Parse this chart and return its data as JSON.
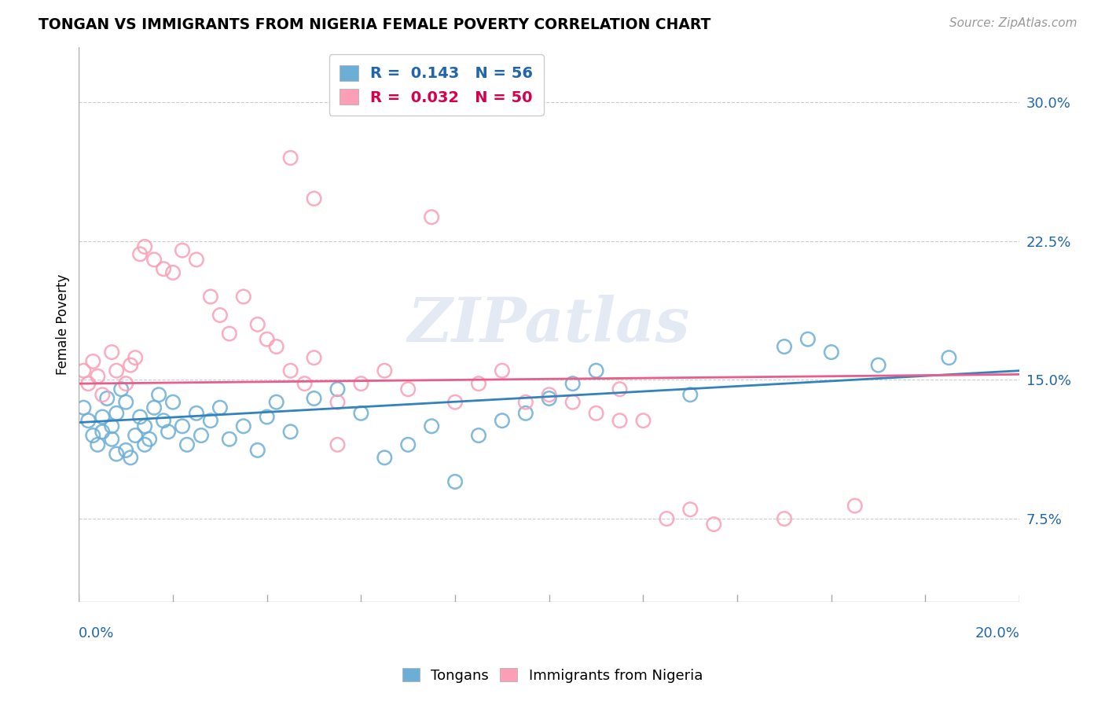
{
  "title": "TONGAN VS IMMIGRANTS FROM NIGERIA FEMALE POVERTY CORRELATION CHART",
  "source": "Source: ZipAtlas.com",
  "ylabel": "Female Poverty",
  "yticks": [
    "7.5%",
    "15.0%",
    "22.5%",
    "30.0%"
  ],
  "ytick_vals": [
    0.075,
    0.15,
    0.225,
    0.3
  ],
  "xlim": [
    0.0,
    0.2
  ],
  "ylim": [
    0.03,
    0.33
  ],
  "color_blue": "#6baed6",
  "color_pink": "#fa9fb5",
  "color_blue_line": "#3182bd",
  "color_pink_line": "#e85d8a",
  "color_text_blue": "#2166ac",
  "color_text_pink": "#d6004d",
  "tongans_x": [
    0.001,
    0.002,
    0.003,
    0.004,
    0.005,
    0.005,
    0.006,
    0.007,
    0.007,
    0.008,
    0.008,
    0.009,
    0.01,
    0.01,
    0.011,
    0.012,
    0.013,
    0.014,
    0.014,
    0.015,
    0.016,
    0.017,
    0.018,
    0.019,
    0.02,
    0.022,
    0.023,
    0.025,
    0.026,
    0.028,
    0.03,
    0.032,
    0.035,
    0.038,
    0.04,
    0.042,
    0.045,
    0.05,
    0.055,
    0.06,
    0.065,
    0.07,
    0.075,
    0.08,
    0.085,
    0.09,
    0.095,
    0.1,
    0.105,
    0.11,
    0.13,
    0.15,
    0.155,
    0.16,
    0.17,
    0.185
  ],
  "tongans_y": [
    0.135,
    0.128,
    0.12,
    0.115,
    0.13,
    0.122,
    0.14,
    0.118,
    0.125,
    0.132,
    0.11,
    0.145,
    0.138,
    0.112,
    0.108,
    0.12,
    0.13,
    0.115,
    0.125,
    0.118,
    0.135,
    0.142,
    0.128,
    0.122,
    0.138,
    0.125,
    0.115,
    0.132,
    0.12,
    0.128,
    0.135,
    0.118,
    0.125,
    0.112,
    0.13,
    0.138,
    0.122,
    0.14,
    0.145,
    0.132,
    0.108,
    0.115,
    0.125,
    0.095,
    0.12,
    0.128,
    0.132,
    0.14,
    0.148,
    0.155,
    0.142,
    0.168,
    0.172,
    0.165,
    0.158,
    0.162
  ],
  "nigeria_x": [
    0.001,
    0.002,
    0.003,
    0.004,
    0.005,
    0.007,
    0.008,
    0.01,
    0.011,
    0.012,
    0.013,
    0.014,
    0.016,
    0.018,
    0.02,
    0.022,
    0.025,
    0.028,
    0.03,
    0.032,
    0.035,
    0.038,
    0.04,
    0.042,
    0.045,
    0.048,
    0.05,
    0.055,
    0.06,
    0.065,
    0.07,
    0.075,
    0.08,
    0.085,
    0.09,
    0.095,
    0.1,
    0.105,
    0.11,
    0.115,
    0.045,
    0.05,
    0.055,
    0.115,
    0.12,
    0.125,
    0.13,
    0.135,
    0.15,
    0.165
  ],
  "nigeria_y": [
    0.155,
    0.148,
    0.16,
    0.152,
    0.142,
    0.165,
    0.155,
    0.148,
    0.158,
    0.162,
    0.218,
    0.222,
    0.215,
    0.21,
    0.208,
    0.22,
    0.215,
    0.195,
    0.185,
    0.175,
    0.195,
    0.18,
    0.172,
    0.168,
    0.155,
    0.148,
    0.162,
    0.138,
    0.148,
    0.155,
    0.145,
    0.238,
    0.138,
    0.148,
    0.155,
    0.138,
    0.142,
    0.138,
    0.132,
    0.128,
    0.27,
    0.248,
    0.115,
    0.145,
    0.128,
    0.075,
    0.08,
    0.072,
    0.075,
    0.082
  ]
}
